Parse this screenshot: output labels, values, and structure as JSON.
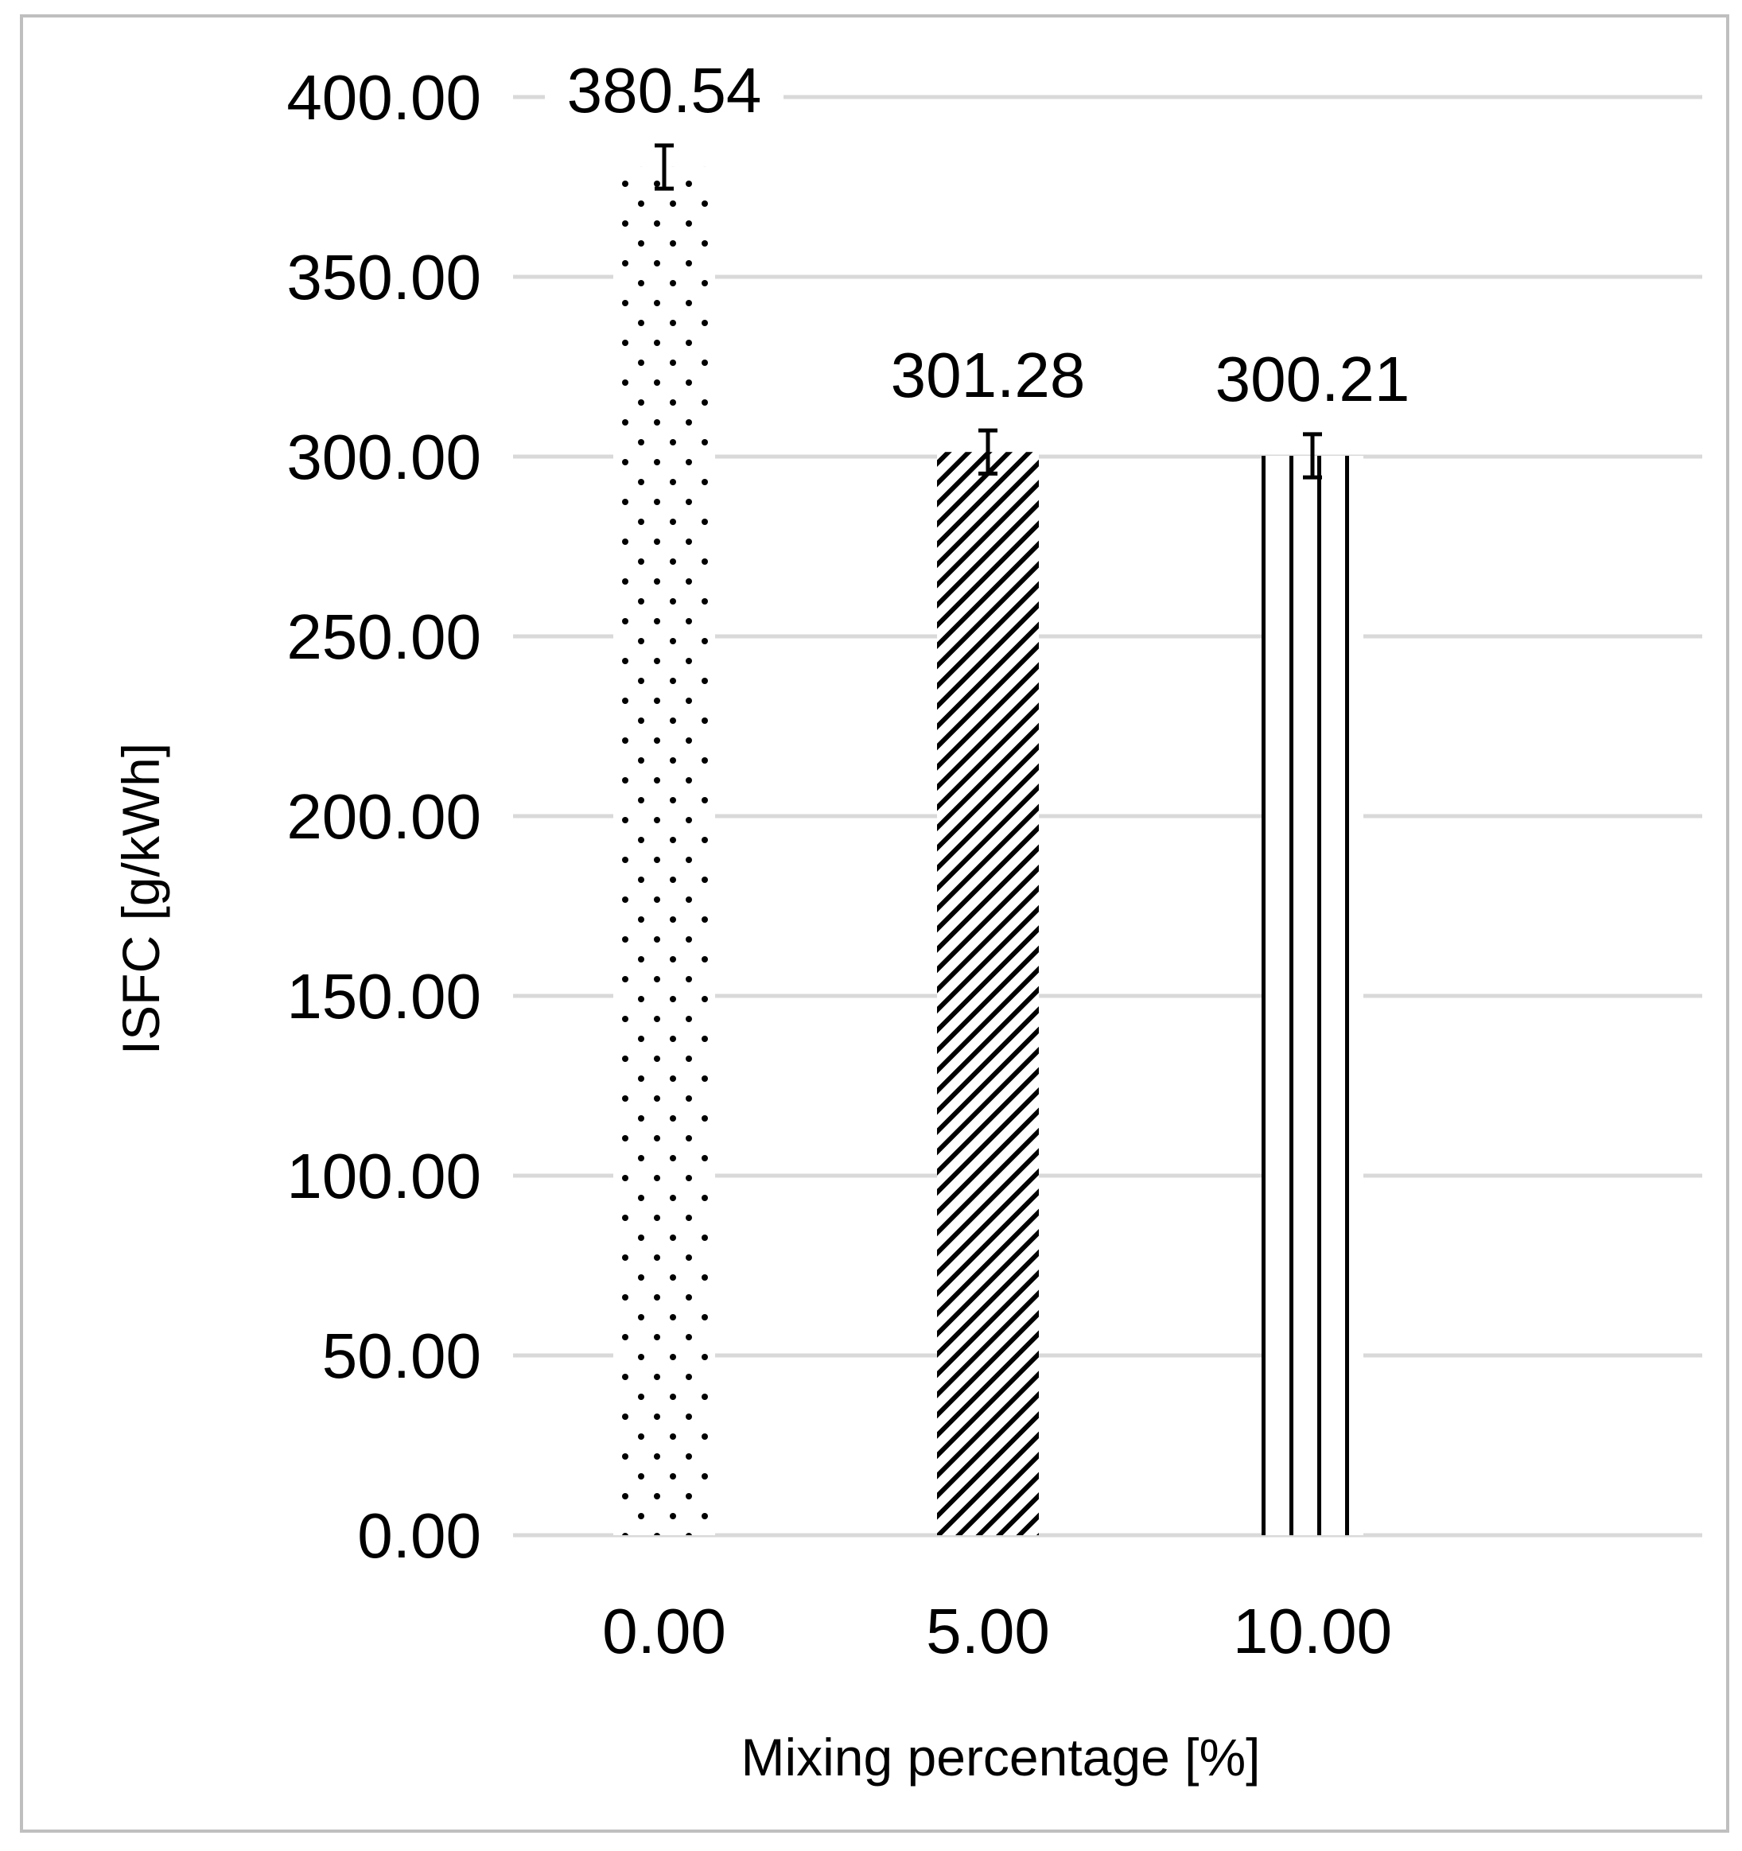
{
  "chart_data": {
    "type": "bar",
    "title": "",
    "xlabel": "Mixing percentage [%]",
    "ylabel": "ISFC [g/kWh]",
    "categories": [
      "0.00",
      "5.00",
      "10.00"
    ],
    "values": [
      380.54,
      301.28,
      300.21
    ],
    "value_labels": [
      "380.54",
      "301.28",
      "300.21"
    ],
    "error_bars": [
      6,
      6,
      6
    ],
    "bar_patterns": [
      "dots",
      "diagonal-hatch",
      "vertical-lines"
    ],
    "ylim": [
      0,
      400
    ],
    "y_tick_step": 50,
    "y_tick_labels": [
      "0.00",
      "50.00",
      "100.00",
      "150.00",
      "200.00",
      "250.00",
      "300.00",
      "350.00",
      "400.00"
    ],
    "grid": true,
    "legend": "none",
    "colors": {
      "gridline": "#d9d9d9",
      "pattern": "#000000",
      "frame": "#bfbfbf",
      "background": "#ffffff"
    }
  }
}
